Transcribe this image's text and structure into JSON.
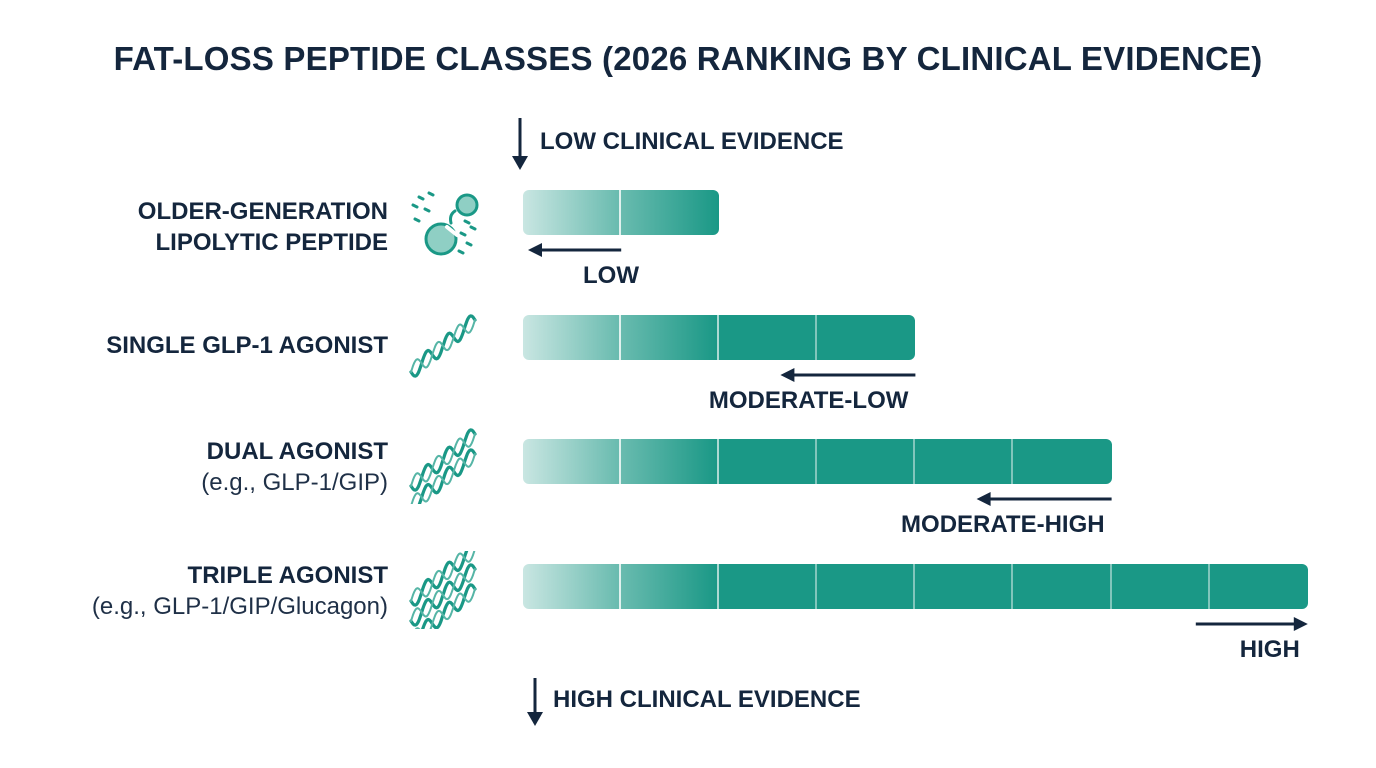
{
  "title": "FAT-LOSS PEPTIDE CLASSES (2026 RANKING BY CLINICAL EVIDENCE)",
  "top_label": "LOW CLINICAL EVIDENCE",
  "bottom_label": "HIGH CLINICAL EVIDENCE",
  "colors": {
    "bar": "#1a9886",
    "bar_light": "#c9e6e2",
    "text": "#14263d"
  },
  "chart_data": {
    "type": "bar",
    "orientation": "horizontal",
    "title": "FAT-LOSS PEPTIDE CLASSES (2026 RANKING BY CLINICAL EVIDENCE)",
    "categories": [
      {
        "name": "OLDER-GENERATION LIPOLYTIC PEPTIDE",
        "name_lines": [
          "OLDER-GENERATION",
          "LIPOLYTIC PEPTIDE"
        ],
        "sub": "",
        "icon": "fragmented-peptide-icon"
      },
      {
        "name": "SINGLE GLP-1 AGONIST",
        "name_lines": [
          "SINGLE GLP-1 AGONIST"
        ],
        "sub": "",
        "icon": "single-helix-icon"
      },
      {
        "name": "DUAL AGONIST",
        "name_lines": [
          "DUAL AGONIST"
        ],
        "sub": "(e.g., GLP-1/GIP)",
        "icon": "double-helix-icon"
      },
      {
        "name": "TRIPLE AGONIST",
        "name_lines": [
          "TRIPLE AGONIST"
        ],
        "sub": "(e.g., GLP-1/GIP/Glucagon)",
        "icon": "triple-helix-icon"
      }
    ],
    "values": [
      2,
      4,
      6,
      8
    ],
    "value_max": 8,
    "level_labels": [
      "LOW",
      "MODERATE-LOW",
      "MODERATE-HIGH",
      "HIGH"
    ],
    "level_arrow_directions": [
      "left",
      "left",
      "left",
      "right"
    ],
    "axis_direction": "top-to-bottom: low to high clinical evidence"
  }
}
